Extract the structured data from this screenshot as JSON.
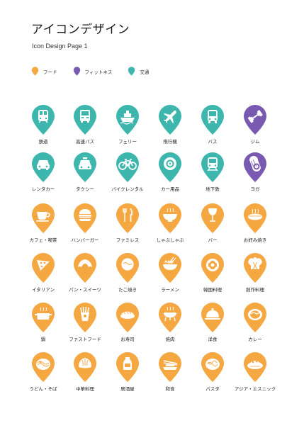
{
  "page": {
    "title": "アイコンデザイン",
    "subtitle": "Icon Design Page 1"
  },
  "colors": {
    "food": "#F5A742",
    "fitness": "#7A59B0",
    "transport": "#3DB7AD"
  },
  "legend": [
    {
      "label": "フード",
      "category": "food"
    },
    {
      "label": "フィットネス",
      "category": "fitness"
    },
    {
      "label": "交通",
      "category": "transport"
    }
  ],
  "icons": [
    {
      "label": "鉄道",
      "category": "transport",
      "icon": "train-icon"
    },
    {
      "label": "高速バス",
      "category": "transport",
      "icon": "bus-icon"
    },
    {
      "label": "フェリー",
      "category": "transport",
      "icon": "ferry-icon"
    },
    {
      "label": "飛行機",
      "category": "transport",
      "icon": "airplane-icon"
    },
    {
      "label": "バス",
      "category": "transport",
      "icon": "bus-front-icon"
    },
    {
      "label": "ジム",
      "category": "fitness",
      "icon": "dumbbell-icon"
    },
    {
      "label": "レンタカー",
      "category": "transport",
      "icon": "car-icon"
    },
    {
      "label": "タクシー",
      "category": "transport",
      "icon": "taxi-icon"
    },
    {
      "label": "バイクレンタル",
      "category": "transport",
      "icon": "bicycle-icon"
    },
    {
      "label": "カー用品",
      "category": "transport",
      "icon": "tire-icon"
    },
    {
      "label": "地下鉄",
      "category": "transport",
      "icon": "subway-icon"
    },
    {
      "label": "ヨガ",
      "category": "fitness",
      "icon": "yoga-mat-icon"
    },
    {
      "label": "カフェ・喫茶",
      "category": "food",
      "icon": "coffee-cup-icon"
    },
    {
      "label": "ハンバーガー",
      "category": "food",
      "icon": "hamburger-icon"
    },
    {
      "label": "ファミレス",
      "category": "food",
      "icon": "fork-knife-icon"
    },
    {
      "label": "しゃぶしゃぶ",
      "category": "food",
      "icon": "bowl-icon"
    },
    {
      "label": "バー",
      "category": "food",
      "icon": "wine-glass-icon"
    },
    {
      "label": "お好み焼き",
      "category": "food",
      "icon": "okonomiyaki-icon"
    },
    {
      "label": "イタリアン",
      "category": "food",
      "icon": "pizza-icon"
    },
    {
      "label": "パン・スイーツ",
      "category": "food",
      "icon": "croissant-icon"
    },
    {
      "label": "たこ焼き",
      "category": "food",
      "icon": "takoyaki-icon"
    },
    {
      "label": "ラーメン",
      "category": "food",
      "icon": "ramen-icon"
    },
    {
      "label": "韓国料理",
      "category": "food",
      "icon": "korean-dish-icon"
    },
    {
      "label": "創作料理",
      "category": "food",
      "icon": "chef-hat-icon"
    },
    {
      "label": "鍋",
      "category": "food",
      "icon": "hot-pot-icon"
    },
    {
      "label": "ファストフード",
      "category": "food",
      "icon": "french-fries-icon"
    },
    {
      "label": "お寿司",
      "category": "food",
      "icon": "sushi-icon"
    },
    {
      "label": "焼肉",
      "category": "food",
      "icon": "grill-icon"
    },
    {
      "label": "洋食",
      "category": "food",
      "icon": "cloche-icon"
    },
    {
      "label": "カレー",
      "category": "food",
      "icon": "curry-icon"
    },
    {
      "label": "うどん・そば",
      "category": "food",
      "icon": "noodles-icon"
    },
    {
      "label": "中華料理",
      "category": "food",
      "icon": "dumpling-icon"
    },
    {
      "label": "居酒屋",
      "category": "food",
      "icon": "sake-icon"
    },
    {
      "label": "和食",
      "category": "food",
      "icon": "chopsticks-icon"
    },
    {
      "label": "パスタ",
      "category": "food",
      "icon": "pasta-icon"
    },
    {
      "label": "アジア・エスニック",
      "category": "food",
      "icon": "ethnic-dish-icon"
    }
  ]
}
